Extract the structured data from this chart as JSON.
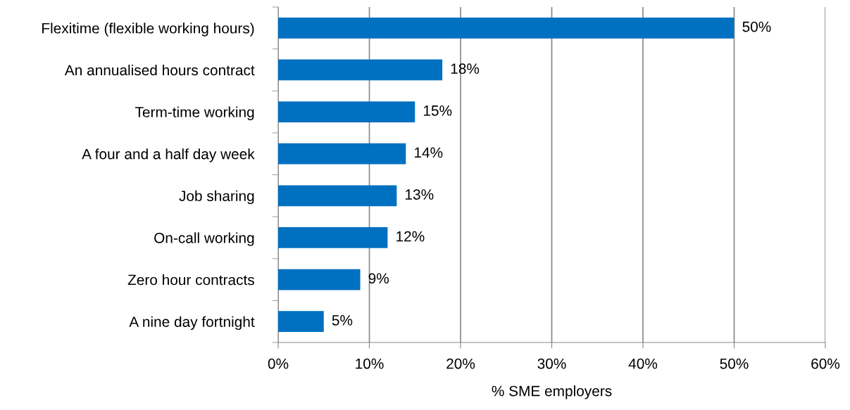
{
  "chart_data": {
    "type": "bar",
    "orientation": "horizontal",
    "xlabel": "% SME employers",
    "categories": [
      "Flexitime (flexible working hours)",
      "An annualised hours contract",
      "Term-time working",
      "A four and a half day week",
      "Job sharing",
      "On-call working",
      "Zero hour contracts",
      "A nine day fortnight"
    ],
    "values": [
      50,
      18,
      15,
      14,
      13,
      12,
      9,
      5
    ],
    "value_labels": [
      "50%",
      "18%",
      "15%",
      "14%",
      "13%",
      "12%",
      "9%",
      "5%"
    ],
    "color": "#0070c0",
    "xlim": [
      0,
      60
    ],
    "xticks": [
      {
        "value": 0,
        "label": "0%"
      },
      {
        "value": 10,
        "label": "10%"
      },
      {
        "value": 20,
        "label": "20%"
      },
      {
        "value": 30,
        "label": "30%"
      },
      {
        "value": 40,
        "label": "40%"
      },
      {
        "value": 50,
        "label": "50%"
      },
      {
        "value": 60,
        "label": "60%"
      }
    ],
    "grid": "x"
  }
}
